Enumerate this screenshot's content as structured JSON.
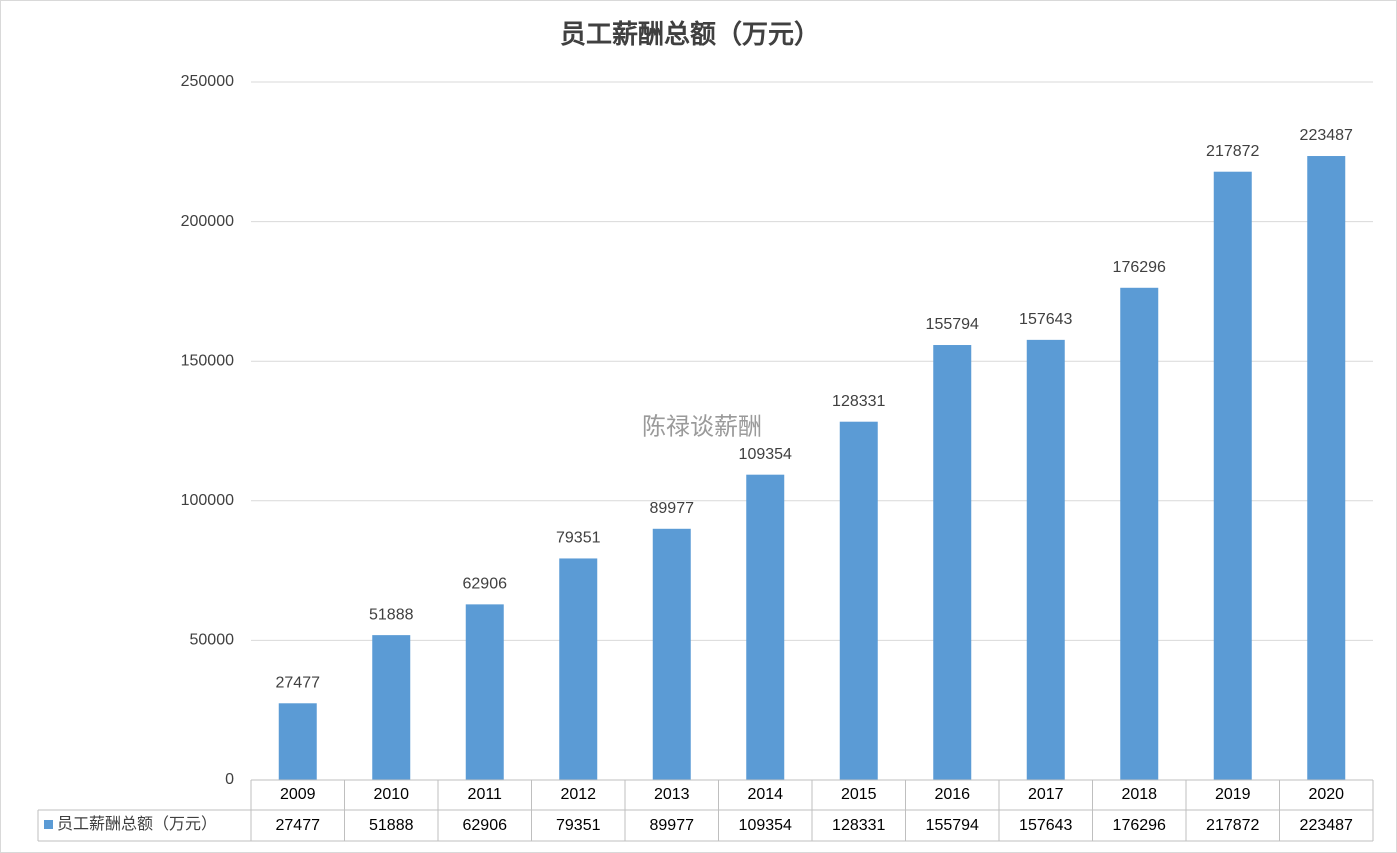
{
  "chart_data": {
    "type": "bar",
    "title": "员工薪酬总额（万元）",
    "categories": [
      "2009",
      "2010",
      "2011",
      "2012",
      "2013",
      "2014",
      "2015",
      "2016",
      "2017",
      "2018",
      "2019",
      "2020"
    ],
    "series": [
      {
        "name": "员工薪酬总额（万元）",
        "color": "#5b9bd5",
        "values": [
          27477,
          51888,
          62906,
          79351,
          89977,
          109354,
          128331,
          155794,
          157643,
          176296,
          217872,
          223487
        ]
      }
    ],
    "ylim": [
      0,
      250000
    ],
    "yticks": [
      0,
      50000,
      100000,
      150000,
      200000,
      250000
    ],
    "grid": true,
    "annotation": "陈禄谈薪酬"
  }
}
